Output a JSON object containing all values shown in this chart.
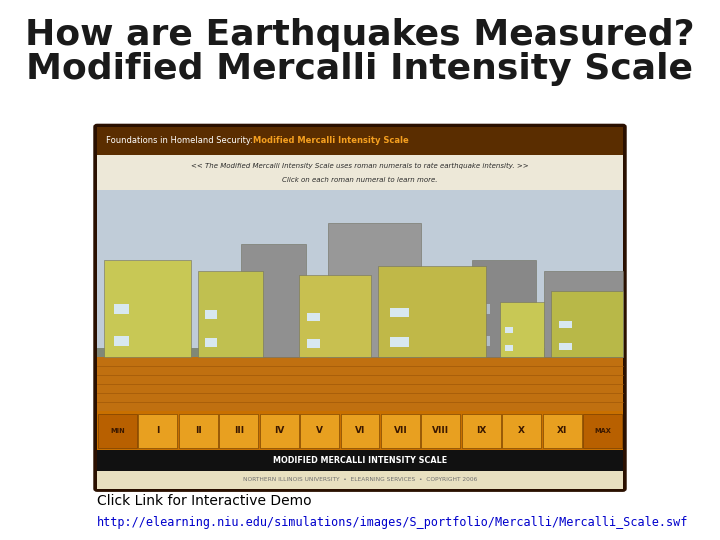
{
  "title_line1": "How are Earthquakes Measured?",
  "title_line2": "Modified Mercalli Intensity Scale",
  "title_fontsize": 26,
  "title_color": "#1a1a1a",
  "title_font_weight": "bold",
  "click_text": "Click Link for Interactive Demo",
  "link_text": "http://elearning.niu.edu/simulations/images/S_portfolio/Mercalli/Mercalli_Scale.swf",
  "click_fontsize": 12,
  "link_color": "#0000cc",
  "click_color": "#000000",
  "bg_color": "#ffffff",
  "roman_numerals": [
    "MIN",
    "I",
    "II",
    "III",
    "IV",
    "V",
    "VI",
    "VII",
    "VIII",
    "IX",
    "X",
    "XI",
    "MAX"
  ],
  "scale_label": "MODIFIED MERCALLI INTENSITY SCALE",
  "footer_text": "NORTHERN ILLINOIS UNIVERSITY  •  ELEARNING SERVICES  •  COPYRIGHT 2006"
}
